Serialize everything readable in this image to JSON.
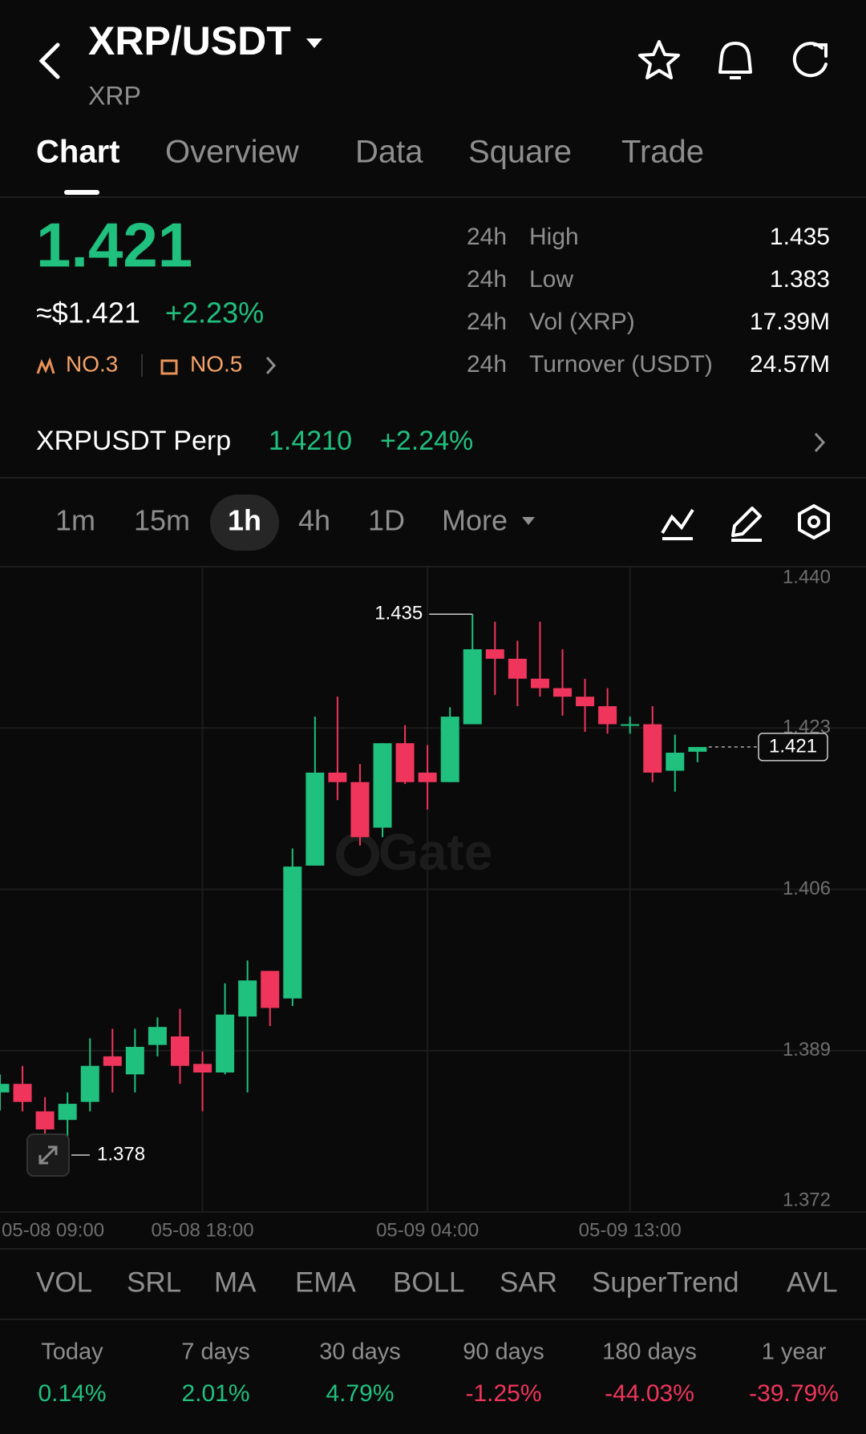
{
  "header": {
    "pair": "XRP/USDT",
    "base": "XRP"
  },
  "tabs": [
    "Chart",
    "Overview",
    "Data",
    "Square",
    "Trade"
  ],
  "ticker": {
    "price": "1.421",
    "usd_price": "≈$1.421",
    "change": "+2.23%",
    "ranks": [
      "NO.3",
      "NO.5"
    ]
  },
  "stats": [
    {
      "period": "24h",
      "label": "High",
      "value": "1.435"
    },
    {
      "period": "24h",
      "label": "Low",
      "value": "1.383"
    },
    {
      "period": "24h",
      "label": "Vol (XRP)",
      "value": "17.39M"
    },
    {
      "period": "24h",
      "label": "Turnover (USDT)",
      "value": "24.57M"
    }
  ],
  "perp": {
    "name": "XRPUSDT Perp",
    "price": "1.4210",
    "change": "+2.24%"
  },
  "intervals": [
    "1m",
    "15m",
    "1h",
    "4h",
    "1D",
    "More"
  ],
  "chart_data": {
    "type": "candlestick",
    "watermark": "Gate",
    "categories": [
      "05-08 09:00",
      null,
      null,
      null,
      null,
      null,
      null,
      null,
      null,
      "05-08 18:00",
      null,
      null,
      null,
      null,
      null,
      null,
      null,
      null,
      null,
      "05-09 04:00",
      null,
      null,
      null,
      null,
      null,
      null,
      null,
      null,
      "05-09 13:00",
      null,
      null,
      null
    ],
    "open": [
      1.3846,
      1.3855,
      1.3826,
      1.3817,
      1.3836,
      1.3884,
      1.3865,
      1.3896,
      1.3905,
      1.3876,
      1.3867,
      1.3926,
      1.3974,
      1.3945,
      1.4085,
      1.4183,
      1.4173,
      1.4125,
      1.4214,
      1.4183,
      1.4173,
      1.4234,
      1.4313,
      1.4303,
      1.4282,
      1.4272,
      1.4263,
      1.4253,
      1.4233,
      1.4234,
      1.4185,
      1.4205
    ],
    "high": [
      1.3865,
      1.3874,
      1.3841,
      1.3846,
      1.3903,
      1.3913,
      1.3913,
      1.3925,
      1.3934,
      1.3889,
      1.3961,
      1.3985,
      1.3974,
      1.4103,
      1.4242,
      1.4263,
      1.4192,
      1.4214,
      1.4233,
      1.4212,
      1.4252,
      1.435,
      1.4342,
      1.4322,
      1.4342,
      1.4313,
      1.4282,
      1.4272,
      1.4242,
      1.4253,
      1.4223,
      1.421
    ],
    "low": [
      1.3827,
      1.3826,
      1.378,
      1.3797,
      1.3826,
      1.3846,
      1.3846,
      1.3884,
      1.3855,
      1.3826,
      1.3865,
      1.3846,
      1.3916,
      1.3937,
      1.4085,
      1.4154,
      1.4106,
      1.4115,
      1.4171,
      1.4144,
      1.4173,
      1.4234,
      1.4265,
      1.4253,
      1.4263,
      1.4243,
      1.4226,
      1.4224,
      1.4224,
      1.4173,
      1.4163,
      1.4194
    ],
    "close": [
      1.3855,
      1.3836,
      1.3807,
      1.3834,
      1.3874,
      1.3874,
      1.3894,
      1.3915,
      1.3874,
      1.3867,
      1.3928,
      1.3964,
      1.3935,
      1.4084,
      1.4183,
      1.4173,
      1.4115,
      1.4214,
      1.4173,
      1.4173,
      1.4242,
      1.4313,
      1.4303,
      1.4282,
      1.4272,
      1.4263,
      1.4253,
      1.4234,
      1.4234,
      1.4183,
      1.4204,
      1.421
    ],
    "up_color": "#20c07f",
    "down_color": "#f0355c",
    "ylim": [
      1.372,
      1.44
    ],
    "yticks": [
      {
        "value": 1.44,
        "label": "1.440"
      },
      1.423,
      1.406,
      1.389,
      1.372
    ],
    "grid": true
  },
  "indicators": [
    "VOL",
    "SRL",
    "MA",
    "EMA",
    "BOLL",
    "SAR",
    "SuperTrend",
    "AVL"
  ],
  "performance": [
    {
      "period": "Today",
      "value": "0.14%"
    },
    {
      "period": "7 days",
      "value": "2.01%"
    },
    {
      "period": "30 days",
      "value": "4.79%"
    },
    {
      "period": "90 days",
      "value": "-1.25%"
    },
    {
      "period": "180 days",
      "value": "-44.03%"
    },
    {
      "period": "1 year",
      "value": "-39.79%"
    }
  ]
}
